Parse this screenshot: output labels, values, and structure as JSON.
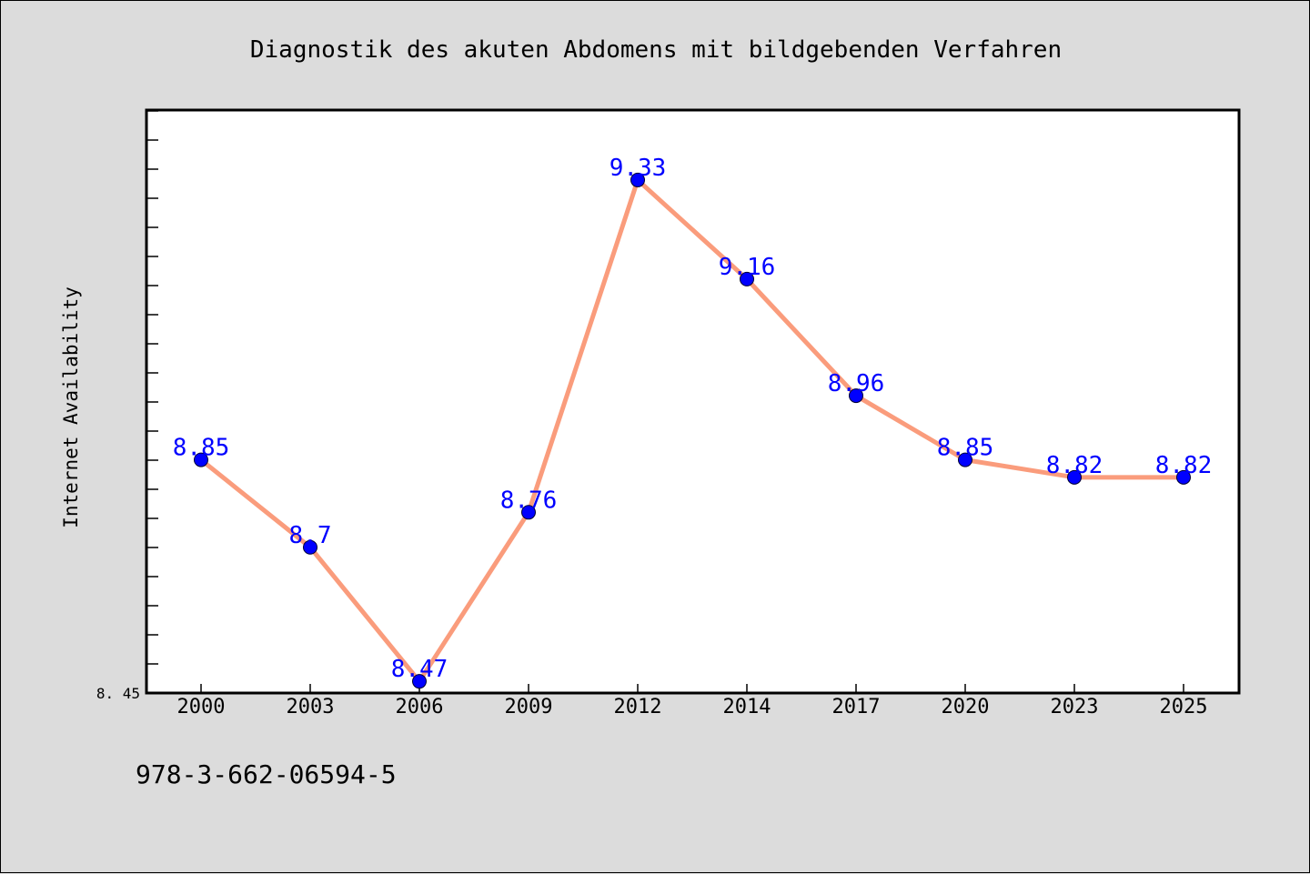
{
  "chart_data": {
    "type": "line",
    "title": "Diagnostik des akuten Abdomens mit bildgebenden Verfahren",
    "xlabel": "",
    "ylabel": "Internet Availability",
    "categories": [
      "2000",
      "2003",
      "2006",
      "2009",
      "2012",
      "2014",
      "2017",
      "2020",
      "2023",
      "2025"
    ],
    "series": [
      {
        "values": [
          8.85,
          8.7,
          8.47,
          8.76,
          9.33,
          9.16,
          8.96,
          8.85,
          8.82,
          8.82
        ],
        "labels": [
          "8.85",
          "8.7",
          "8.47",
          "8.76",
          "9.33",
          "9.16",
          "8.96",
          "8.85",
          "8.82",
          "8.82"
        ],
        "line_color": "#fa9c7c",
        "marker_color": "#0000ff"
      }
    ],
    "ylim": [
      8.45,
      9.45
    ],
    "yticks": [
      "8.45"
    ],
    "grid": false,
    "legend": "none"
  },
  "footer": {
    "isbn": "978-3-662-06594-5"
  },
  "colors": {
    "background": "#dcdcdc",
    "plot_background": "#ffffff",
    "label_color": "#0000ff"
  }
}
